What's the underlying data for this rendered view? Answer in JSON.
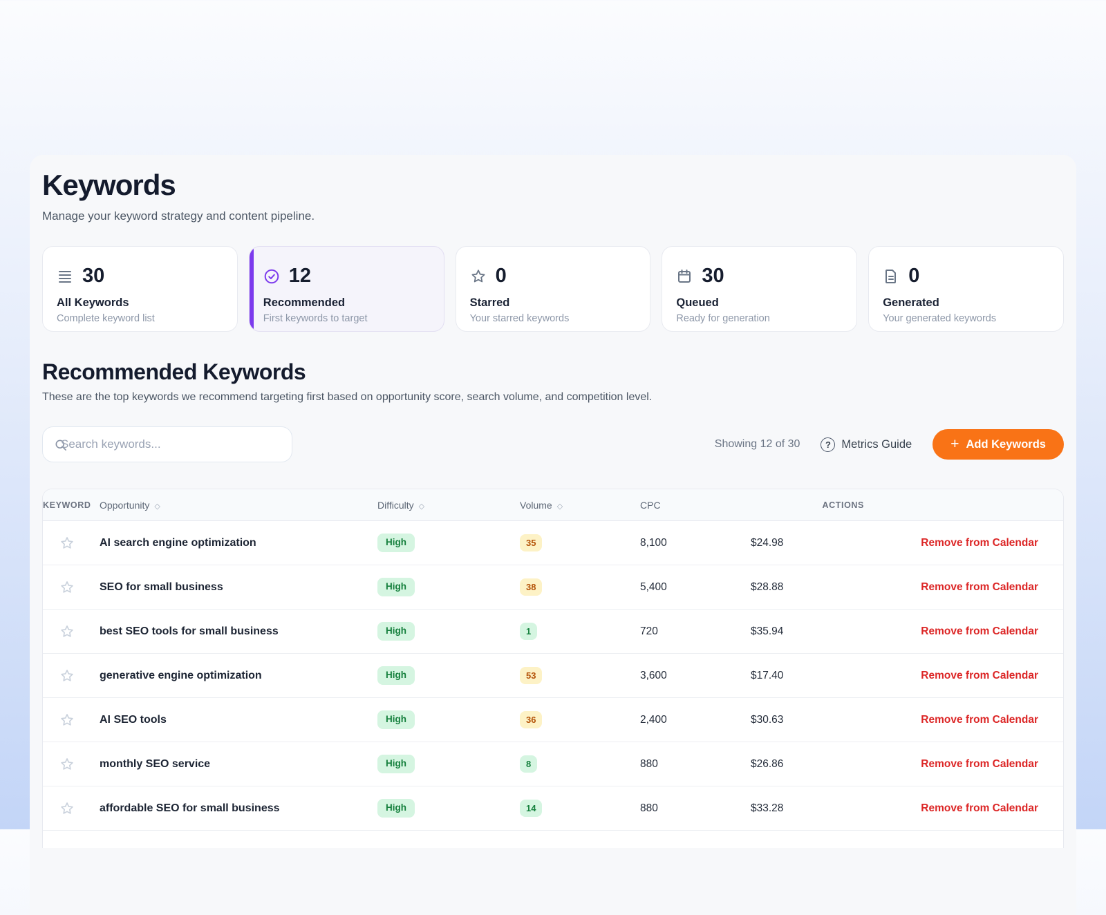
{
  "page": {
    "title": "Keywords",
    "subtitle": "Manage your keyword strategy and content pipeline."
  },
  "stats": [
    {
      "icon": "list-icon",
      "value": "30",
      "label": "All Keywords",
      "description": "Complete keyword list",
      "active": false
    },
    {
      "icon": "check-circle-icon",
      "value": "12",
      "label": "Recommended",
      "description": "First keywords to target",
      "active": true
    },
    {
      "icon": "star-icon",
      "value": "0",
      "label": "Starred",
      "description": "Your starred keywords",
      "active": false
    },
    {
      "icon": "calendar-icon",
      "value": "30",
      "label": "Queued",
      "description": "Ready for generation",
      "active": false
    },
    {
      "icon": "document-icon",
      "value": "0",
      "label": "Generated",
      "description": "Your generated keywords",
      "active": false
    }
  ],
  "section": {
    "title": "Recommended Keywords",
    "subtitle": "These are the top keywords we recommend targeting first based on opportunity score, search volume, and competition level."
  },
  "toolbar": {
    "search_placeholder": "Search keywords...",
    "showing_text": "Showing 12 of 30",
    "metrics_guide_label": "Metrics Guide",
    "add_keywords_label": "Add Keywords"
  },
  "icons": {
    "plus_glyph": "+",
    "question_glyph": "?",
    "sort_glyph": "◇"
  },
  "table": {
    "headers": [
      {
        "label": "KEYWORD",
        "sortable": false,
        "caps": true
      },
      {
        "label": "Opportunity",
        "sortable": true,
        "caps": false
      },
      {
        "label": "Difficulty",
        "sortable": true,
        "caps": false
      },
      {
        "label": "Volume",
        "sortable": true,
        "caps": false
      },
      {
        "label": "CPC",
        "sortable": false,
        "caps": false
      },
      {
        "label": "ACTIONS",
        "sortable": false,
        "caps": true
      }
    ],
    "rows": [
      {
        "keyword": "AI search engine optimization",
        "opportunity": "High",
        "difficulty": "35",
        "difficulty_color": "yellow",
        "volume": "8,100",
        "cpc": "$24.98",
        "action": "Remove from Calendar"
      },
      {
        "keyword": "SEO for small business",
        "opportunity": "High",
        "difficulty": "38",
        "difficulty_color": "yellow",
        "volume": "5,400",
        "cpc": "$28.88",
        "action": "Remove from Calendar"
      },
      {
        "keyword": "best SEO tools for small business",
        "opportunity": "High",
        "difficulty": "1",
        "difficulty_color": "green",
        "volume": "720",
        "cpc": "$35.94",
        "action": "Remove from Calendar"
      },
      {
        "keyword": "generative engine optimization",
        "opportunity": "High",
        "difficulty": "53",
        "difficulty_color": "yellow",
        "volume": "3,600",
        "cpc": "$17.40",
        "action": "Remove from Calendar"
      },
      {
        "keyword": "AI SEO tools",
        "opportunity": "High",
        "difficulty": "36",
        "difficulty_color": "yellow",
        "volume": "2,400",
        "cpc": "$30.63",
        "action": "Remove from Calendar"
      },
      {
        "keyword": "monthly SEO service",
        "opportunity": "High",
        "difficulty": "8",
        "difficulty_color": "green",
        "volume": "880",
        "cpc": "$26.86",
        "action": "Remove from Calendar"
      },
      {
        "keyword": "affordable SEO for small business",
        "opportunity": "High",
        "difficulty": "14",
        "difficulty_color": "green",
        "volume": "880",
        "cpc": "$33.28",
        "action": "Remove from Calendar"
      }
    ]
  },
  "colors": {
    "accent_purple": "#7c3aed",
    "accent_orange": "#f97316",
    "action_red": "#dc2626",
    "badge_green_bg": "#d5f5e1",
    "badge_green_text": "#15803d",
    "badge_yellow_bg": "#fdf2c6",
    "badge_yellow_text": "#b45309"
  }
}
